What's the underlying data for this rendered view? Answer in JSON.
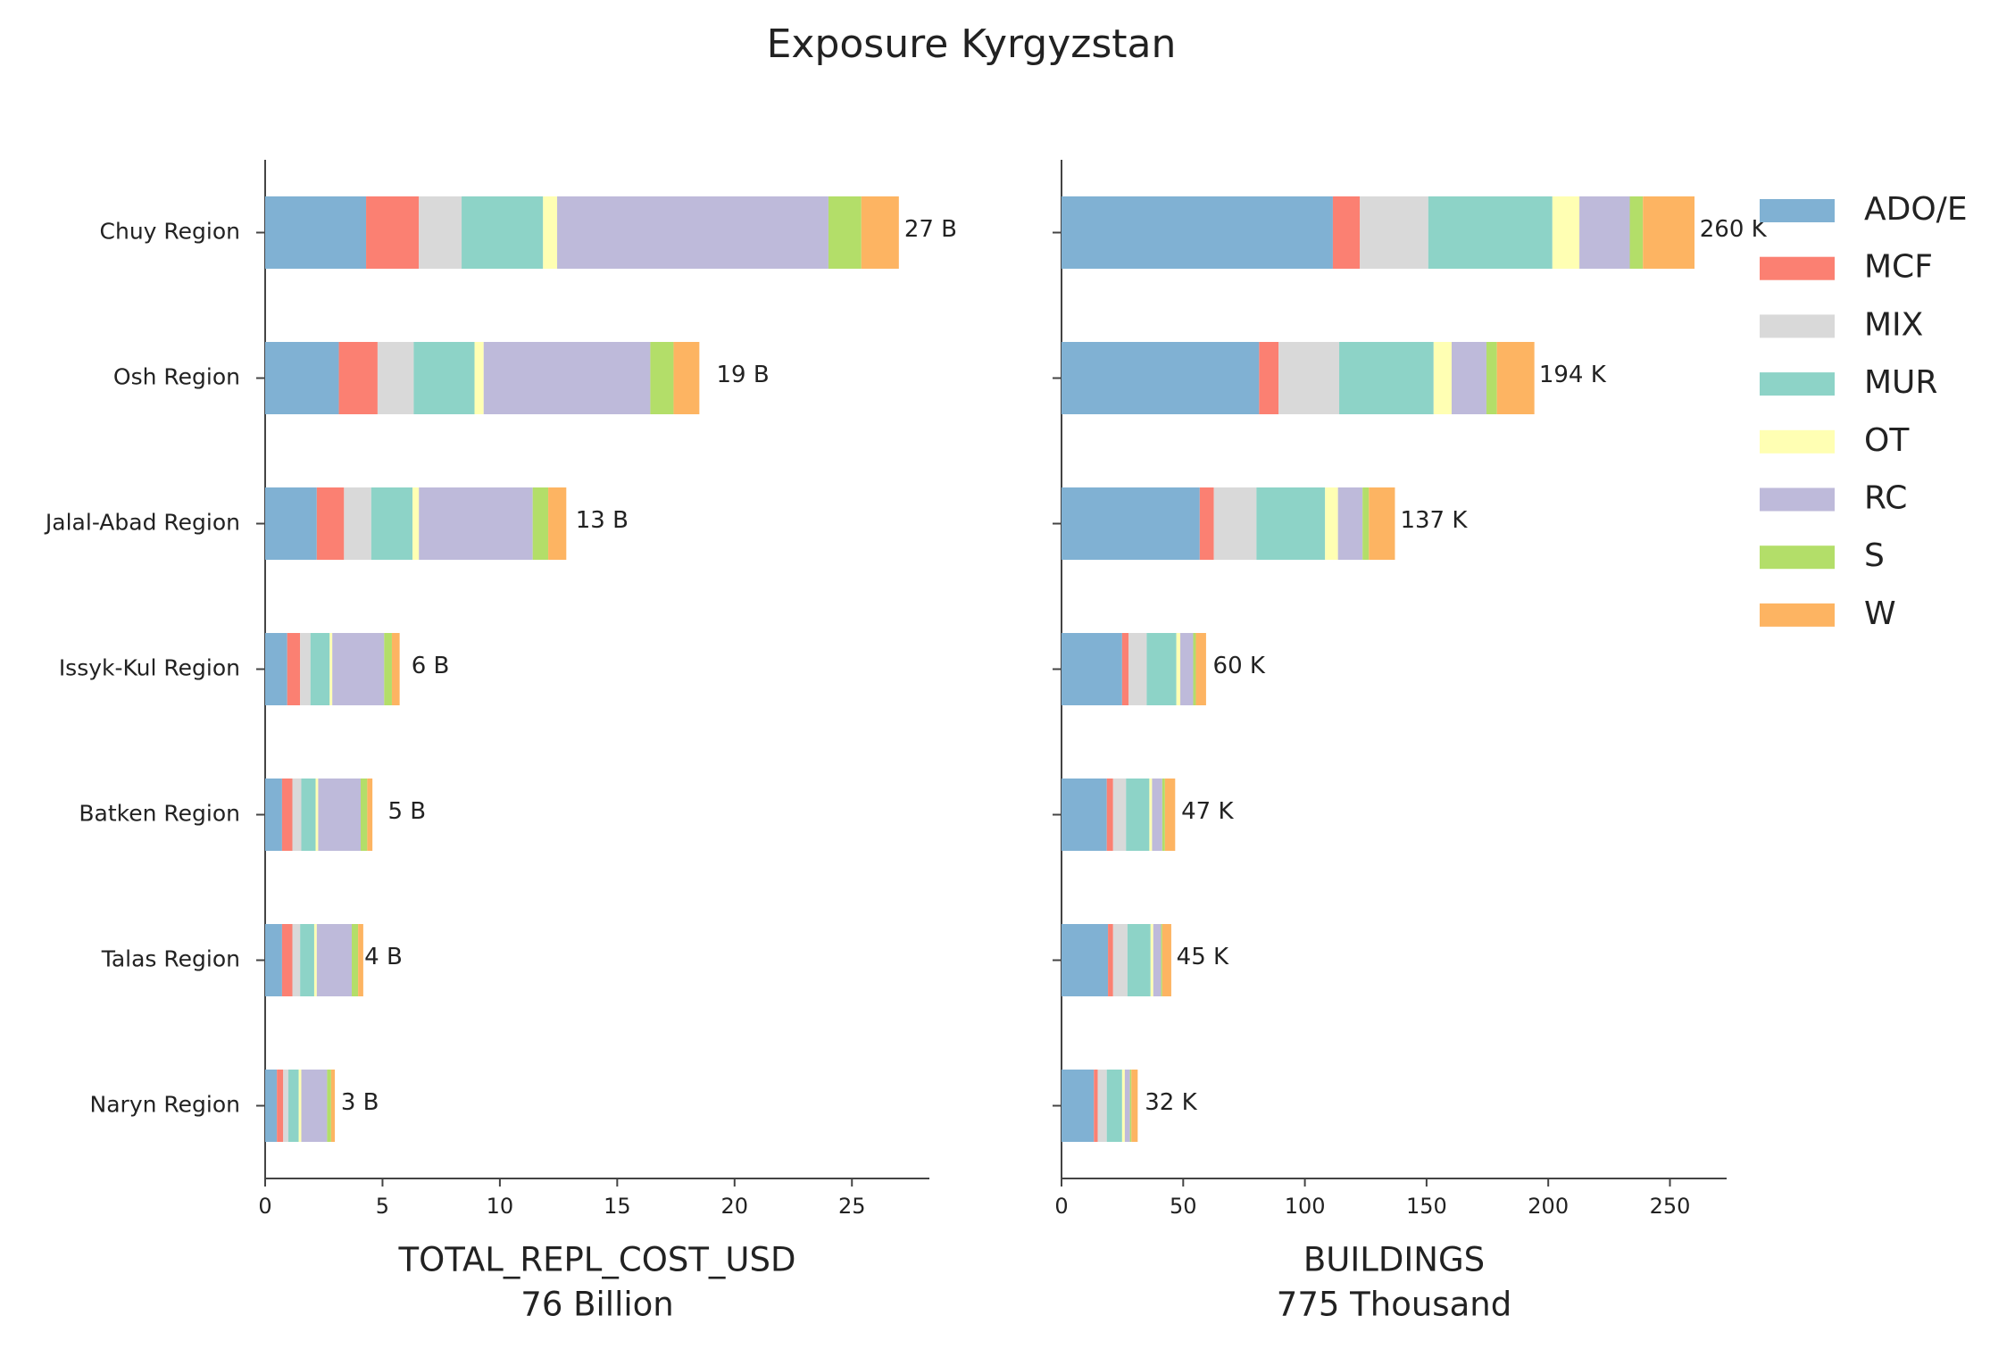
{
  "chart_data": [
    {
      "type": "barh-stacked",
      "title": "Exposure Kyrgyzstan",
      "categories": [
        "Chuy Region",
        "Osh Region",
        "Jalal-Abad Region",
        "Issyk-Kul Region",
        "Batken Region",
        "Talas Region",
        "Naryn Region"
      ],
      "series": [
        {
          "name": "ADO/E",
          "color": "#80b1d3",
          "values": [
            4.3,
            3.14,
            2.2,
            0.94,
            0.72,
            0.72,
            0.5
          ]
        },
        {
          "name": "MCF",
          "color": "#fb8072",
          "values": [
            2.25,
            1.65,
            1.16,
            0.55,
            0.44,
            0.44,
            0.27
          ]
        },
        {
          "name": "MIX",
          "color": "#d9d9d9",
          "values": [
            1.82,
            1.54,
            1.16,
            0.44,
            0.38,
            0.33,
            0.22
          ]
        },
        {
          "name": "MUR",
          "color": "#8dd3c7",
          "values": [
            3.47,
            2.59,
            1.76,
            0.82,
            0.61,
            0.6,
            0.44
          ]
        },
        {
          "name": "OT",
          "color": "#ffffb3",
          "values": [
            0.6,
            0.39,
            0.27,
            0.11,
            0.11,
            0.11,
            0.11
          ]
        },
        {
          "name": "RC",
          "color": "#bebada",
          "values": [
            11.56,
            7.1,
            4.85,
            2.21,
            1.81,
            1.49,
            1.1
          ]
        },
        {
          "name": "S",
          "color": "#b3de69",
          "values": [
            1.4,
            0.99,
            0.66,
            0.33,
            0.28,
            0.27,
            0.17
          ]
        },
        {
          "name": "W",
          "color": "#fdb462",
          "values": [
            1.6,
            1.1,
            0.77,
            0.33,
            0.22,
            0.22,
            0.16
          ]
        }
      ],
      "totals": {
        "values": [
          27,
          19,
          13,
          6,
          5,
          4,
          3
        ],
        "value_labels": [
          "27 B",
          "19 B",
          "13 B",
          "6 B",
          "5 B",
          "4 B",
          "3 B"
        ]
      },
      "xlim": [
        0,
        28.3
      ],
      "xticks": [
        0,
        5,
        10,
        15,
        20,
        25
      ],
      "xlabel_lines": [
        "TOTAL_REPL_COST_USD",
        "76 Billion"
      ],
      "legend": "upper right"
    },
    {
      "type": "barh-stacked",
      "series": [
        {
          "values": [
            111.5,
            81.2,
            56.8,
            24.9,
            18.6,
            19.1,
            13.3
          ]
        },
        {
          "values": [
            11.1,
            8,
            5.8,
            2.7,
            2.6,
            2.1,
            1.6
          ]
        },
        {
          "values": [
            28.1,
            24.9,
            17.5,
            7.4,
            5.3,
            5.9,
            3.7
          ]
        },
        {
          "values": [
            51,
            38.8,
            28.2,
            12.2,
            9.6,
            9.5,
            6.3
          ]
        },
        {
          "values": [
            11.1,
            7.4,
            5.3,
            1.6,
            1.1,
            1.1,
            1.1
          ]
        },
        {
          "values": [
            20.7,
            14.3,
            10.1,
            5.3,
            4.2,
            3.2,
            2.1
          ]
        },
        {
          "values": [
            5.4,
            4.3,
            2.6,
            1.1,
            1.1,
            0.5,
            0.6
          ]
        },
        {
          "values": [
            21.2,
            15.4,
            10.7,
            4.2,
            4.2,
            3.7,
            2.6
          ]
        }
      ],
      "totals": {
        "values": [
          260,
          194,
          137,
          60,
          47,
          45,
          32
        ],
        "value_labels": [
          "260 K",
          "194 K",
          "137 K",
          "60 K",
          "47 K",
          "45 K",
          "32 K"
        ]
      },
      "xlim": [
        0,
        273.3
      ],
      "xticks": [
        0,
        50,
        100,
        150,
        200,
        250
      ],
      "xlabel_lines": [
        "BUILDINGS",
        "775 Thousand"
      ]
    }
  ]
}
